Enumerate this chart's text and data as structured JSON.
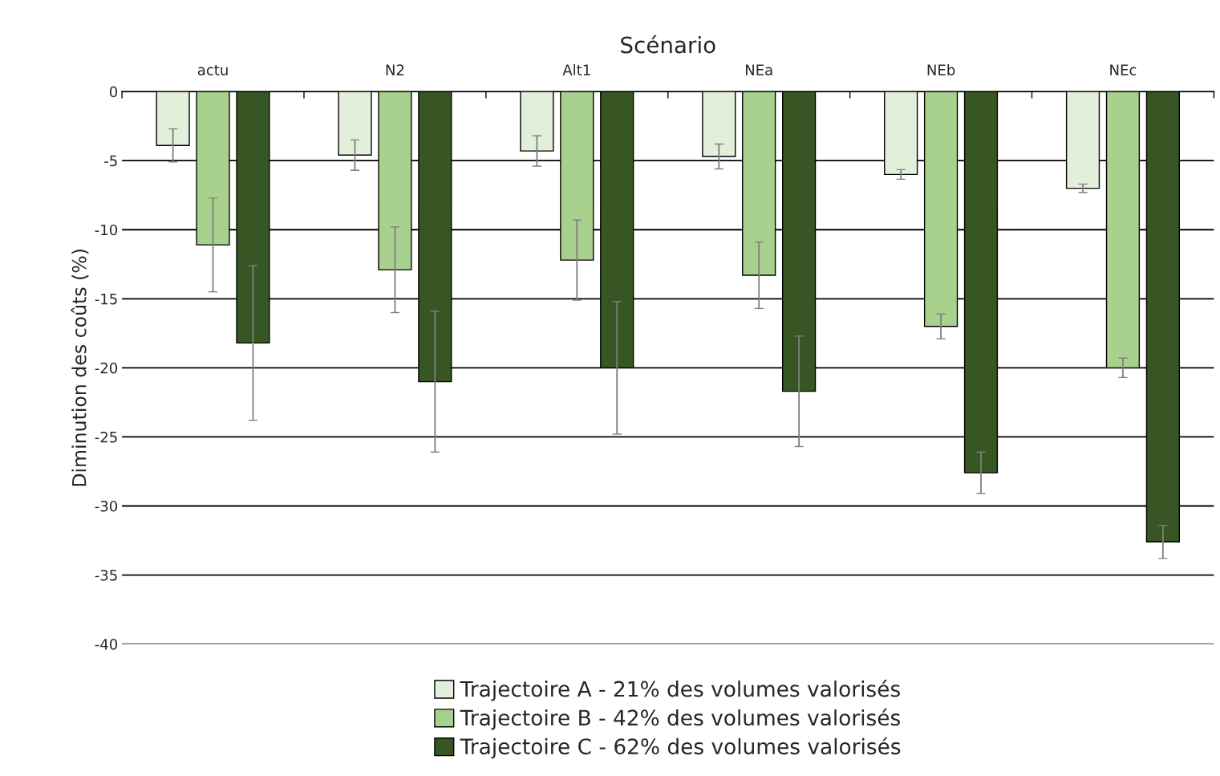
{
  "chart_data": {
    "type": "bar",
    "xlabel": "Scénario",
    "ylabel": "Diminution des coûts (%)",
    "categories": [
      "actu",
      "N2",
      "Alt1",
      "NEa",
      "NEb",
      "NEc"
    ],
    "series": [
      {
        "name": "Trajectoire A - 21% des volumes valorisés",
        "color": "#e2efda",
        "values": [
          -3.9,
          -4.6,
          -4.3,
          -4.7,
          -6.0,
          -7.0
        ],
        "errors": [
          1.2,
          1.1,
          1.1,
          0.9,
          0.35,
          0.3
        ]
      },
      {
        "name": "Trajectoire B - 42% des volumes valorisés",
        "color": "#a9d18e",
        "values": [
          -11.1,
          -12.9,
          -12.2,
          -13.3,
          -17.0,
          -20.0
        ],
        "errors": [
          3.4,
          3.1,
          2.9,
          2.4,
          0.9,
          0.7
        ]
      },
      {
        "name": "Trajectoire C - 62% des volumes valorisés",
        "color": "#375623",
        "values": [
          -18.2,
          -21.0,
          -20.0,
          -21.7,
          -27.6,
          -32.6
        ],
        "errors": [
          5.6,
          5.1,
          4.8,
          4.0,
          1.5,
          1.2
        ]
      }
    ],
    "ylim": [
      -40,
      0
    ],
    "yticks": [
      -40,
      -35,
      -30,
      -25,
      -20,
      -15,
      -10,
      -5,
      0
    ],
    "grid": "y",
    "legend": "bottom"
  }
}
